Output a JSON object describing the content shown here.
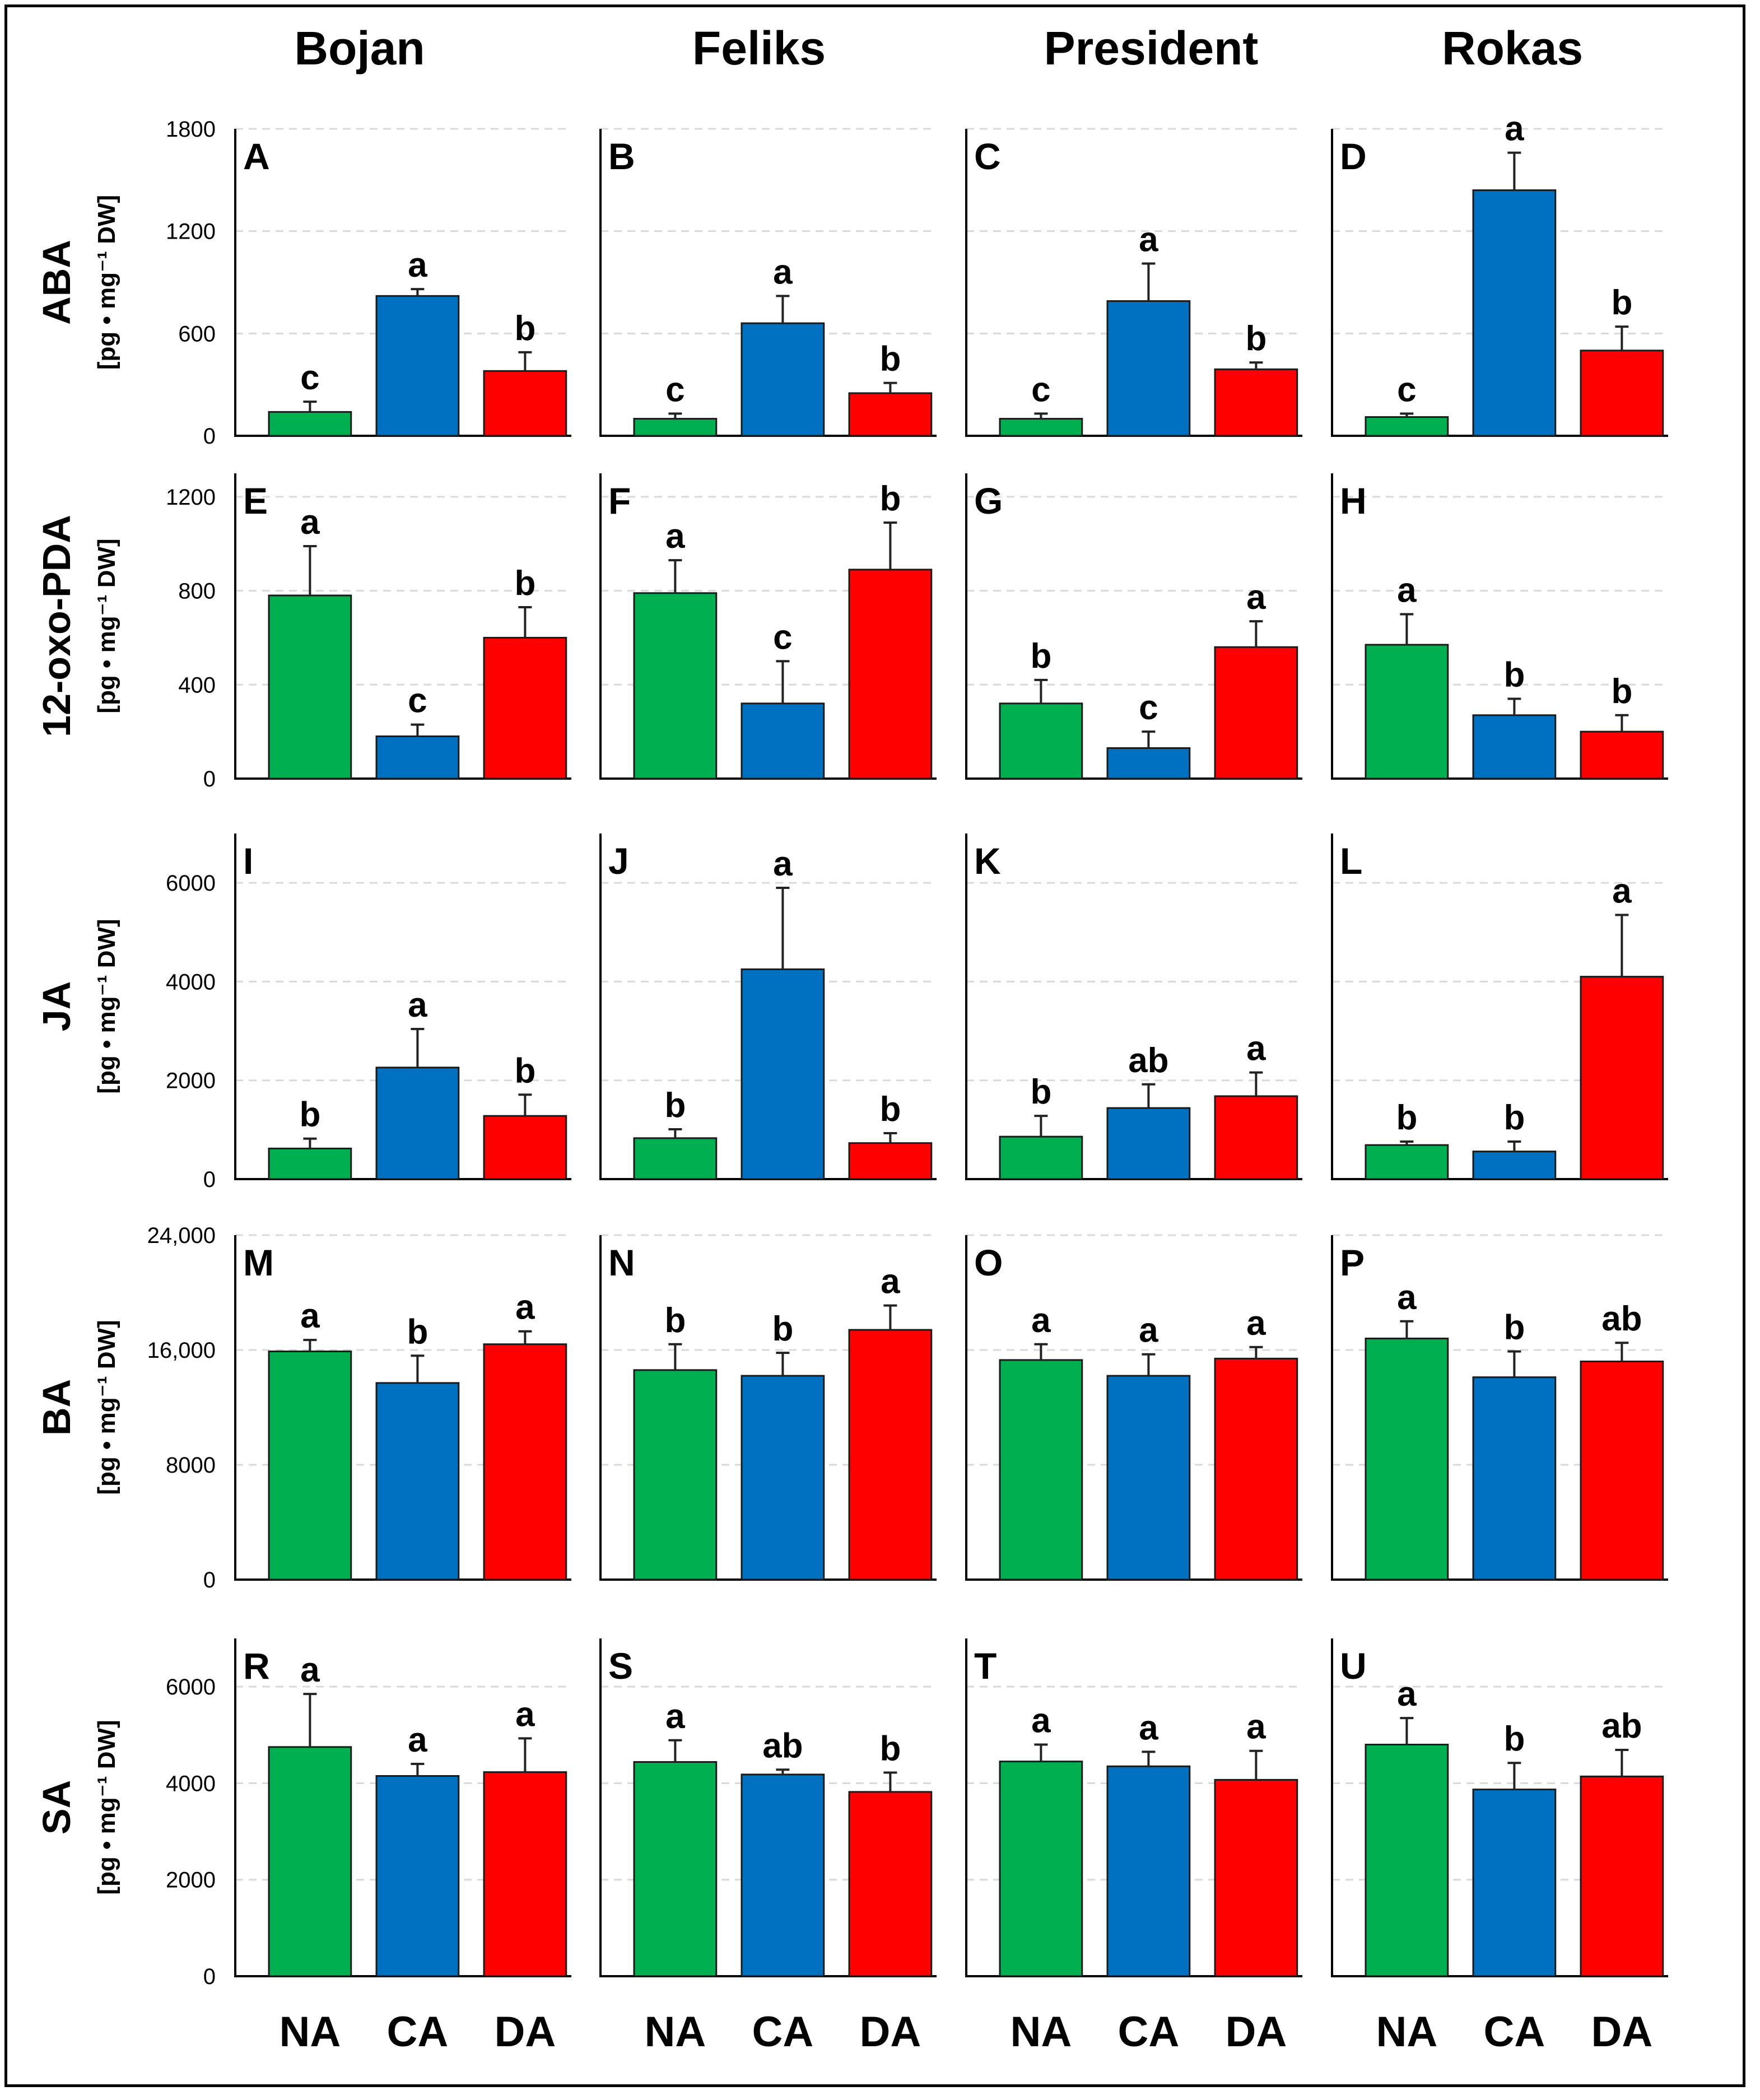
{
  "chart_data": {
    "type": "bar",
    "columns": [
      "Bojan",
      "Feliks",
      "President",
      "Rokas"
    ],
    "x_categories": [
      "NA",
      "CA",
      "DA"
    ],
    "colors": {
      "NA": "#00b050",
      "CA": "#0070c0",
      "DA": "#ff0000"
    },
    "unit_label": "[pg • mg⁻¹ DW]",
    "rows": [
      {
        "name": "ABA",
        "ylim": [
          0,
          1800
        ],
        "yticks": [
          0,
          600,
          1200,
          1800
        ],
        "ytick_labels": [
          "0",
          "600",
          "1200",
          "1800"
        ],
        "panels": [
          {
            "letter": "A",
            "values": [
              140,
              820,
              380
            ],
            "errors": [
              60,
              40,
              110
            ],
            "sig": [
              "c",
              "a",
              "b"
            ]
          },
          {
            "letter": "B",
            "values": [
              100,
              660,
              250
            ],
            "errors": [
              30,
              160,
              60
            ],
            "sig": [
              "c",
              "a",
              "b"
            ]
          },
          {
            "letter": "C",
            "values": [
              100,
              790,
              390
            ],
            "errors": [
              30,
              220,
              40
            ],
            "sig": [
              "c",
              "a",
              "b"
            ]
          },
          {
            "letter": "D",
            "values": [
              110,
              1440,
              500
            ],
            "errors": [
              20,
              220,
              140
            ],
            "sig": [
              "c",
              "a",
              "b"
            ]
          }
        ]
      },
      {
        "name": "12-oxo-PDA",
        "ylim": [
          0,
          1300
        ],
        "yticks": [
          0,
          400,
          800,
          1200
        ],
        "ytick_labels": [
          "0",
          "400",
          "800",
          "1200"
        ],
        "panels": [
          {
            "letter": "E",
            "values": [
              780,
              180,
              600
            ],
            "errors": [
              210,
              50,
              130
            ],
            "sig": [
              "a",
              "c",
              "b"
            ]
          },
          {
            "letter": "F",
            "values": [
              790,
              320,
              890
            ],
            "errors": [
              140,
              180,
              200
            ],
            "sig": [
              "a",
              "c",
              "b"
            ]
          },
          {
            "letter": "G",
            "values": [
              320,
              130,
              560
            ],
            "errors": [
              100,
              70,
              110
            ],
            "sig": [
              "b",
              "c",
              "a"
            ]
          },
          {
            "letter": "H",
            "values": [
              570,
              270,
              200
            ],
            "errors": [
              130,
              70,
              70
            ],
            "sig": [
              "a",
              "b",
              "b"
            ]
          }
        ]
      },
      {
        "name": "JA",
        "ylim": [
          0,
          7000
        ],
        "yticks": [
          0,
          2000,
          4000,
          6000
        ],
        "ytick_labels": [
          "0",
          "2000",
          "4000",
          "6000"
        ],
        "panels": [
          {
            "letter": "I",
            "values": [
              620,
              2260,
              1280
            ],
            "errors": [
              200,
              780,
              430
            ],
            "sig": [
              "b",
              "a",
              "b"
            ]
          },
          {
            "letter": "J",
            "values": [
              830,
              4250,
              730
            ],
            "errors": [
              180,
              1650,
              200
            ],
            "sig": [
              "b",
              "a",
              "b"
            ]
          },
          {
            "letter": "K",
            "values": [
              860,
              1440,
              1680
            ],
            "errors": [
              420,
              480,
              480
            ],
            "sig": [
              "b",
              "ab",
              "a"
            ]
          },
          {
            "letter": "L",
            "values": [
              690,
              560,
              4100
            ],
            "errors": [
              70,
              200,
              1250
            ],
            "sig": [
              "b",
              "b",
              "a"
            ]
          }
        ]
      },
      {
        "name": "BA",
        "ylim": [
          0,
          24000
        ],
        "yticks": [
          0,
          8000,
          16000,
          24000
        ],
        "ytick_labels": [
          "0",
          "8000",
          "16,000",
          "24,000"
        ],
        "panels": [
          {
            "letter": "M",
            "values": [
              15900,
              13700,
              16400
            ],
            "errors": [
              800,
              1900,
              900
            ],
            "sig": [
              "a",
              "b",
              "a"
            ]
          },
          {
            "letter": "N",
            "values": [
              14600,
              14200,
              17400
            ],
            "errors": [
              1800,
              1600,
              1700
            ],
            "sig": [
              "b",
              "b",
              "a"
            ]
          },
          {
            "letter": "O",
            "values": [
              15300,
              14200,
              15400
            ],
            "errors": [
              1100,
              1500,
              800
            ],
            "sig": [
              "a",
              "a",
              "a"
            ]
          },
          {
            "letter": "P",
            "values": [
              16800,
              14100,
              15200
            ],
            "errors": [
              1200,
              1800,
              1300
            ],
            "sig": [
              "a",
              "b",
              "ab"
            ]
          }
        ]
      },
      {
        "name": "SA",
        "ylim": [
          0,
          7000
        ],
        "yticks": [
          0,
          2000,
          4000,
          6000
        ],
        "ytick_labels": [
          "0",
          "2000",
          "4000",
          "6000"
        ],
        "panels": [
          {
            "letter": "R",
            "values": [
              4750,
              4150,
              4230
            ],
            "errors": [
              1100,
              250,
              700
            ],
            "sig": [
              "a",
              "a",
              "a"
            ]
          },
          {
            "letter": "S",
            "values": [
              4440,
              4180,
              3820
            ],
            "errors": [
              450,
              100,
              400
            ],
            "sig": [
              "a",
              "ab",
              "b"
            ]
          },
          {
            "letter": "T",
            "values": [
              4450,
              4350,
              4070
            ],
            "errors": [
              350,
              300,
              600
            ],
            "sig": [
              "a",
              "a",
              "a"
            ]
          },
          {
            "letter": "U",
            "values": [
              4800,
              3870,
              4140
            ],
            "errors": [
              550,
              550,
              550
            ],
            "sig": [
              "a",
              "b",
              "ab"
            ]
          }
        ]
      }
    ]
  }
}
